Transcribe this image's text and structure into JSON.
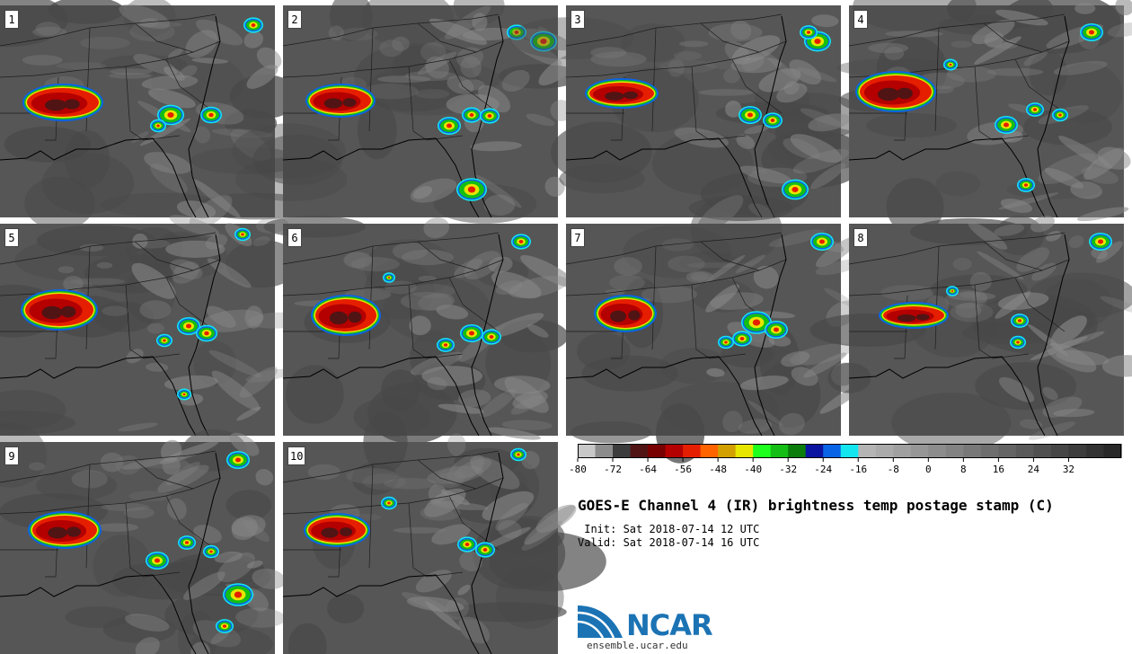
{
  "panels": [
    {
      "label": "1"
    },
    {
      "label": "2"
    },
    {
      "label": "3"
    },
    {
      "label": "4"
    },
    {
      "label": "5"
    },
    {
      "label": "6"
    },
    {
      "label": "7"
    },
    {
      "label": "8"
    },
    {
      "label": "9"
    },
    {
      "label": "10"
    }
  ],
  "colorbar": {
    "tick_labels": [
      "-80",
      "-72",
      "-64",
      "-56",
      "-48",
      "-40",
      "-32",
      "-24",
      "-16",
      "-8",
      "0",
      "8",
      "16",
      "24",
      "32"
    ],
    "colors": [
      "#c8c8c8",
      "#8c8c8c",
      "#3c3c3c",
      "#501414",
      "#780000",
      "#b40000",
      "#e61e00",
      "#ff6400",
      "#d2a000",
      "#e6e600",
      "#1eff1e",
      "#14be14",
      "#0a7d0a",
      "#0a14a0",
      "#0a64e6",
      "#14e6f0",
      "#b4b4b4",
      "#aaaaaa",
      "#a0a0a0",
      "#969696",
      "#8c8c8c",
      "#828282",
      "#787878",
      "#6e6e6e",
      "#646464",
      "#5a5a5a",
      "#505050",
      "#464646",
      "#3c3c3c",
      "#323232",
      "#282828"
    ]
  },
  "title": "GOES-E Channel 4 (IR) brightness temp postage stamp (C)",
  "init_line": " Init: Sat 2018-07-14 12 UTC",
  "valid_line": "Valid: Sat 2018-07-14 16 UTC",
  "logo": {
    "text": "NCAR",
    "url": "ensemble.ucar.edu",
    "color": "#1b73b4"
  }
}
